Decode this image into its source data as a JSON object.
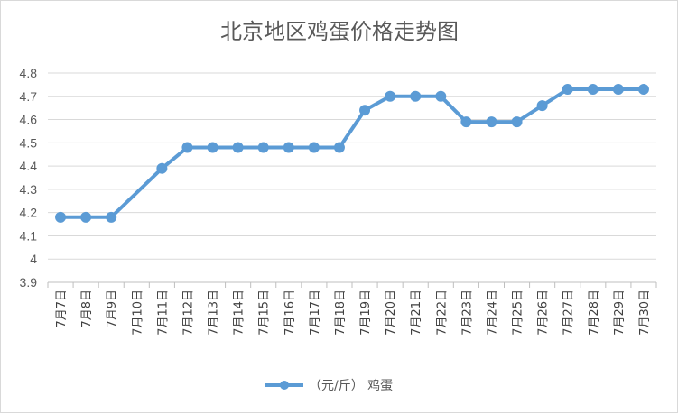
{
  "chart_data": {
    "type": "line",
    "title": "北京地区鸡蛋价格走势图",
    "categories": [
      "7月7日",
      "7月8日",
      "7月9日",
      "7月10日",
      "7月11日",
      "7月12日",
      "7月13日",
      "7月14日",
      "7月15日",
      "7月16日",
      "7月17日",
      "7月18日",
      "7月19日",
      "7月20日",
      "7月21日",
      "7月22日",
      "7月23日",
      "7月24日",
      "7月25日",
      "7月26日",
      "7月27日",
      "7月28日",
      "7月29日",
      "7月30日"
    ],
    "series": [
      {
        "name": "（元/斤） 鸡蛋",
        "values": [
          4.18,
          4.18,
          4.18,
          null,
          4.39,
          4.48,
          4.48,
          4.48,
          4.48,
          4.48,
          4.48,
          4.48,
          4.64,
          4.7,
          4.7,
          4.7,
          4.59,
          4.59,
          4.59,
          4.66,
          4.73,
          4.73,
          4.73,
          4.73
        ]
      }
    ],
    "ylim": [
      3.9,
      4.8
    ],
    "yticks": [
      "3.9",
      "4",
      "4.1",
      "4.2",
      "4.3",
      "4.4",
      "4.5",
      "4.6",
      "4.7",
      "4.8"
    ],
    "grid": true,
    "legend": "bottom",
    "color": "#5b9bd5"
  }
}
